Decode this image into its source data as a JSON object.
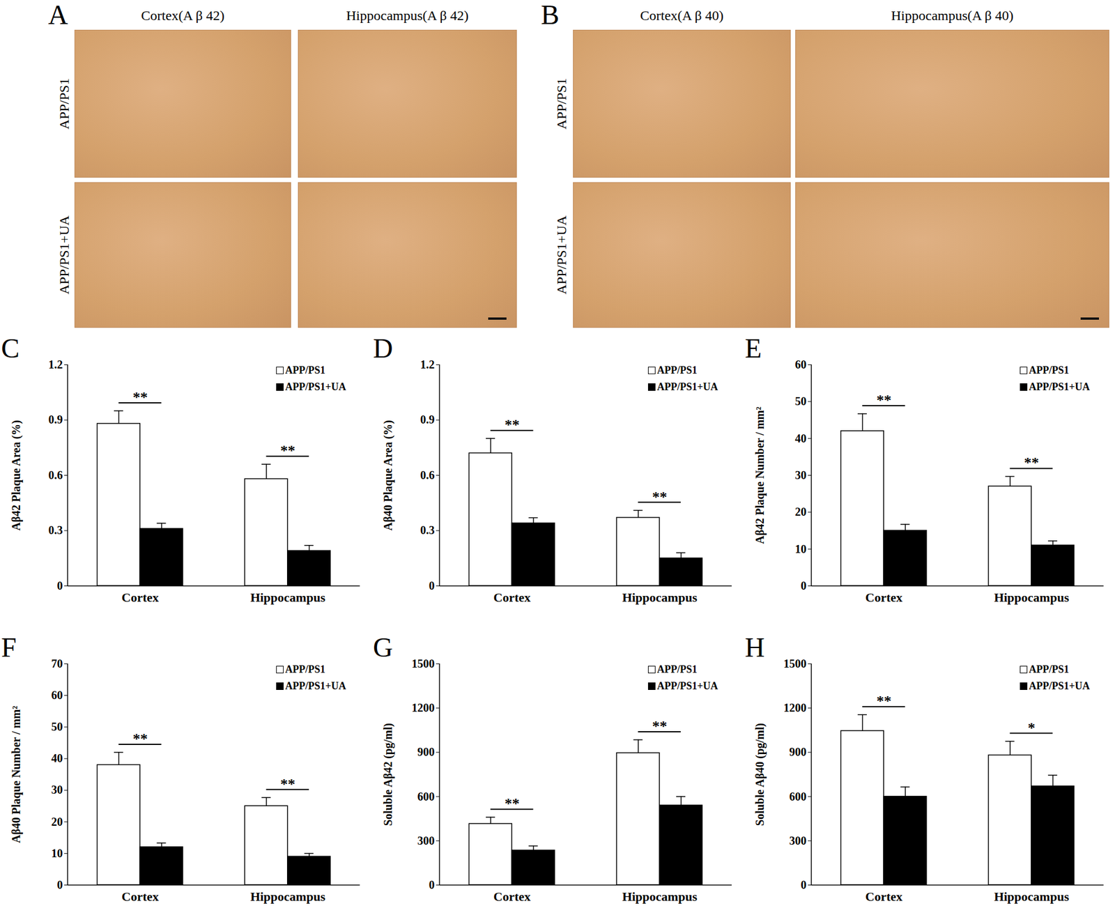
{
  "image_panels": [
    {
      "panel": "A",
      "columns": [
        "Cortex(A β 42)",
        "Hippocampus(A β 42)"
      ],
      "rows": [
        "APP/PS1",
        "APP/PS1+UA"
      ]
    },
    {
      "panel": "B",
      "columns": [
        "Cortex(A β 40)",
        "Hippocampus(A β 40)"
      ],
      "rows": [
        "APP/PS1",
        "APP/PS1+UA"
      ]
    }
  ],
  "chart_data": [
    {
      "panel": "C",
      "type": "bar",
      "ylabel": "Aβ42 Plaque Area (%)",
      "categories": [
        "Cortex",
        "Hippocampus"
      ],
      "series": [
        {
          "name": "APP/PS1",
          "color": "#ffffff",
          "values": [
            0.88,
            0.58
          ],
          "errors": [
            0.07,
            0.08
          ]
        },
        {
          "name": "APP/PS1+UA",
          "color": "#000000",
          "values": [
            0.31,
            0.19
          ],
          "errors": [
            0.03,
            0.03
          ]
        }
      ],
      "significance": [
        "**",
        "**"
      ],
      "ylim": [
        0,
        1.2
      ],
      "yticks": [
        0,
        0.3,
        0.6,
        0.9,
        1.2
      ],
      "legend": "upper right"
    },
    {
      "panel": "D",
      "type": "bar",
      "ylabel": "Aβ40 Plaque Area (%)",
      "categories": [
        "Cortex",
        "Hippocampus"
      ],
      "series": [
        {
          "name": "APP/PS1",
          "color": "#ffffff",
          "values": [
            0.72,
            0.37
          ],
          "errors": [
            0.08,
            0.04
          ]
        },
        {
          "name": "APP/PS1+UA",
          "color": "#000000",
          "values": [
            0.34,
            0.15
          ],
          "errors": [
            0.03,
            0.03
          ]
        }
      ],
      "significance": [
        "**",
        "**"
      ],
      "ylim": [
        0,
        1.2
      ],
      "yticks": [
        0,
        0.3,
        0.6,
        0.9,
        1.2
      ],
      "legend": "upper right"
    },
    {
      "panel": "E",
      "type": "bar",
      "ylabel": "Aβ42 Plaque Number / mm²",
      "categories": [
        "Cortex",
        "Hippocampus"
      ],
      "series": [
        {
          "name": "APP/PS1",
          "color": "#ffffff",
          "values": [
            42,
            27
          ],
          "errors": [
            4.7,
            2.7
          ]
        },
        {
          "name": "APP/PS1+UA",
          "color": "#000000",
          "values": [
            15,
            11
          ],
          "errors": [
            1.7,
            1.2
          ]
        }
      ],
      "significance": [
        "**",
        "**"
      ],
      "ylim": [
        0,
        60
      ],
      "yticks": [
        0,
        10,
        20,
        30,
        40,
        50,
        60
      ],
      "legend": "upper right"
    },
    {
      "panel": "F",
      "type": "bar",
      "ylabel": "Aβ40 Plaque Number / mm²",
      "categories": [
        "Cortex",
        "Hippocampus"
      ],
      "series": [
        {
          "name": "APP/PS1",
          "color": "#ffffff",
          "values": [
            38,
            25
          ],
          "errors": [
            4,
            2.7
          ]
        },
        {
          "name": "APP/PS1+UA",
          "color": "#000000",
          "values": [
            12,
            9
          ],
          "errors": [
            1.3,
            1
          ]
        }
      ],
      "significance": [
        "**",
        "**"
      ],
      "ylim": [
        0,
        70
      ],
      "yticks": [
        0,
        10,
        20,
        30,
        40,
        50,
        60,
        70
      ],
      "legend": "upper right"
    },
    {
      "panel": "G",
      "type": "bar",
      "ylabel": "Soluble Aβ42 (pg/ml)",
      "categories": [
        "Cortex",
        "Hippocampus"
      ],
      "series": [
        {
          "name": "APP/PS1",
          "color": "#ffffff",
          "values": [
            415,
            895
          ],
          "errors": [
            45,
            90
          ]
        },
        {
          "name": "APP/PS1+UA",
          "color": "#000000",
          "values": [
            235,
            540
          ],
          "errors": [
            30,
            60
          ]
        }
      ],
      "significance": [
        "**",
        "**"
      ],
      "ylim": [
        0,
        1500
      ],
      "yticks": [
        0,
        300,
        600,
        900,
        1200,
        1500
      ],
      "legend": "upper right"
    },
    {
      "panel": "H",
      "type": "bar",
      "ylabel": "Soluble Aβ40 (pg/ml)",
      "categories": [
        "Cortex",
        "Hippocampus"
      ],
      "series": [
        {
          "name": "APP/PS1",
          "color": "#ffffff",
          "values": [
            1045,
            880
          ],
          "errors": [
            110,
            95
          ]
        },
        {
          "name": "APP/PS1+UA",
          "color": "#000000",
          "values": [
            600,
            670
          ],
          "errors": [
            65,
            75
          ]
        }
      ],
      "significance": [
        "**",
        "*"
      ],
      "ylim": [
        0,
        1500
      ],
      "yticks": [
        0,
        300,
        600,
        900,
        1200,
        1500
      ],
      "legend": "upper right"
    }
  ]
}
